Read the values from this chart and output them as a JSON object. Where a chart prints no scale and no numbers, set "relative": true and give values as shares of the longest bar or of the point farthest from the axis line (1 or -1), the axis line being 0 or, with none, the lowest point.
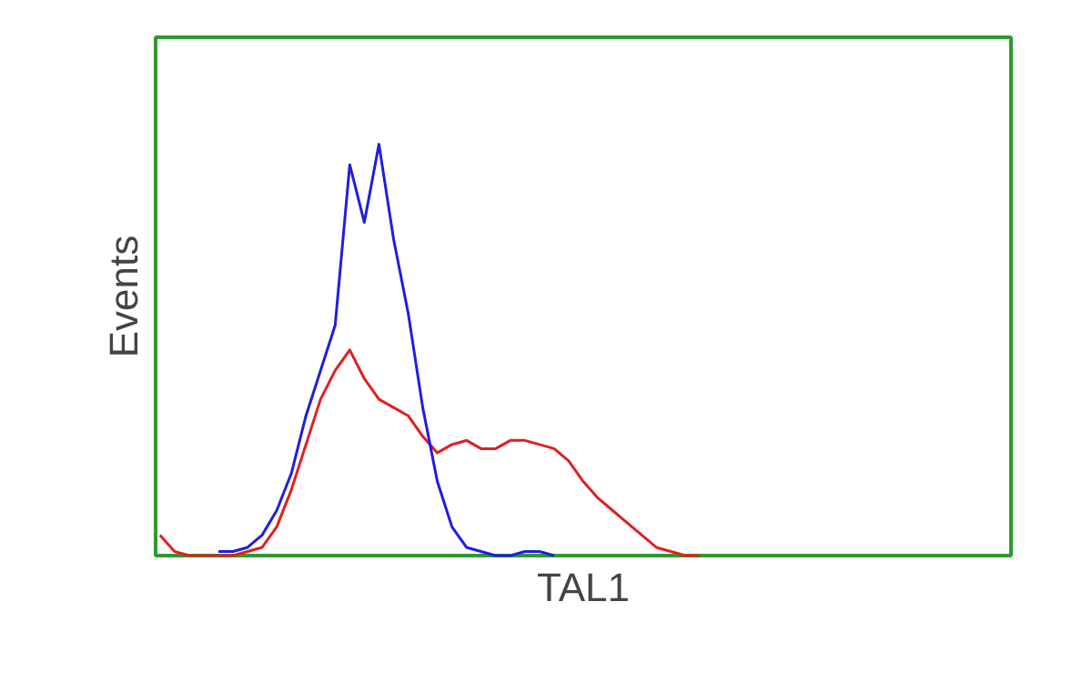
{
  "chart_data": {
    "type": "line",
    "relative": true,
    "xlabel": "TAL1",
    "ylabel": "Events",
    "categories": [
      null,
      null,
      null,
      null,
      null,
      null,
      null,
      null,
      null,
      null,
      null,
      null,
      null,
      null,
      null,
      null,
      null,
      null,
      null,
      null,
      null,
      null,
      null,
      null,
      null,
      null,
      null,
      null,
      null,
      null,
      null,
      null,
      null,
      null,
      null,
      null,
      null,
      null,
      null,
      null,
      null,
      null,
      null,
      null,
      null,
      null,
      null,
      null,
      null,
      null,
      null,
      null,
      null,
      null,
      null,
      null,
      null,
      null,
      null
    ],
    "series": [
      {
        "color": "#e02020",
        "values": [
          0.05,
          0.01,
          0,
          0,
          0,
          0,
          0.01,
          0.02,
          0.07,
          0.16,
          0.27,
          0.38,
          0.45,
          0.5,
          0.43,
          0.38,
          0.36,
          0.34,
          0.29,
          0.25,
          0.27,
          0.28,
          0.26,
          0.26,
          0.28,
          0.28,
          0.27,
          0.26,
          0.23,
          0.18,
          0.14,
          0.11,
          0.08,
          0.05,
          0.02,
          0.01,
          0,
          0,
          null,
          null,
          null,
          null,
          null,
          null,
          null,
          null,
          null,
          null,
          null,
          null,
          null,
          null,
          null,
          null,
          null,
          null,
          null,
          null,
          null
        ]
      },
      {
        "color": "#1f1fdd",
        "values": [
          null,
          null,
          null,
          null,
          0.01,
          0.01,
          0.02,
          0.05,
          0.11,
          0.2,
          0.34,
          0.45,
          0.56,
          0.95,
          0.81,
          1,
          0.77,
          0.59,
          0.36,
          0.18,
          0.07,
          0.02,
          0.01,
          0,
          0,
          0.01,
          0.01,
          0,
          null,
          null,
          null,
          null,
          null,
          null,
          null,
          null,
          null,
          null,
          null,
          null,
          null,
          null,
          null,
          null,
          null,
          null,
          null,
          null,
          null,
          null,
          null,
          null,
          null,
          null,
          null,
          null,
          null,
          null,
          null
        ]
      }
    ]
  }
}
